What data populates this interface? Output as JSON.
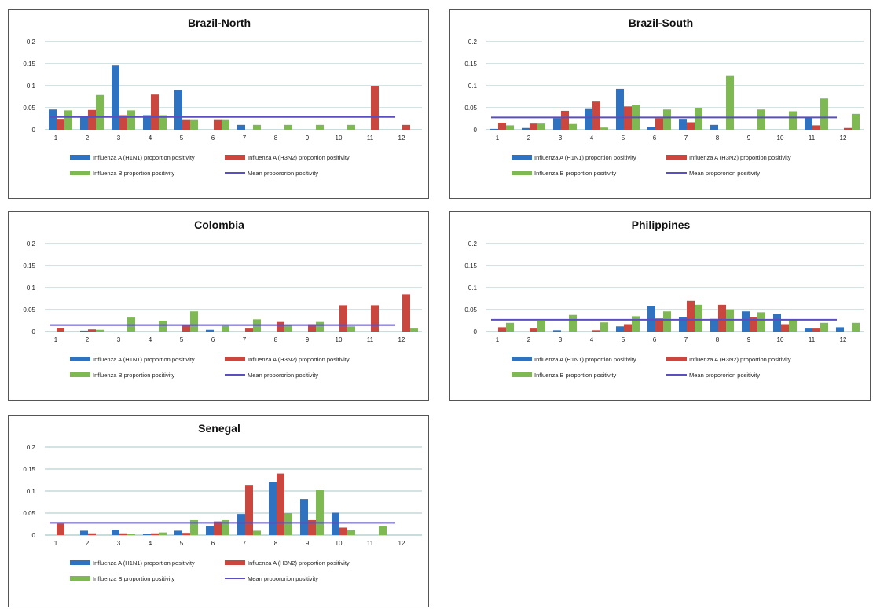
{
  "header_label": "",
  "colors": {
    "h1n1": "#2f72c0",
    "h3n2": "#c9473f",
    "b": "#7fb954",
    "mean": "#5a4fc0",
    "grid": "#a9c6c6"
  },
  "legend": {
    "h1n1": "Influenza A (H1N1) proportion positivity",
    "h3n2": "Influenza A (H3N2) proportion positivity",
    "b": "Influenza B proportion positivity",
    "mean": "Mean propororion positivity"
  },
  "chart_data": [
    {
      "type": "bar",
      "title": "Brazil-North",
      "categories": [
        "1",
        "2",
        "3",
        "4",
        "5",
        "6",
        "7",
        "8",
        "9",
        "10",
        "11",
        "12"
      ],
      "y_ticks": [
        "0",
        "0.05",
        "0.1",
        "0.15",
        "0.2"
      ],
      "ylim": [
        0,
        0.2
      ],
      "series": [
        {
          "name": "Influenza A (H1N1) proportion positivity",
          "values": [
            0.046,
            0.032,
            0.146,
            0.033,
            0.09,
            0,
            0.011,
            0,
            0,
            0,
            0,
            0
          ]
        },
        {
          "name": "Influenza A (H3N2) proportion positivity",
          "values": [
            0.023,
            0.045,
            0.033,
            0.08,
            0.022,
            0.022,
            0,
            0,
            0,
            0,
            0.1,
            0.011
          ]
        },
        {
          "name": "Influenza B proportion positivity",
          "values": [
            0.044,
            0.079,
            0.044,
            0.033,
            0.022,
            0.022,
            0.011,
            0.011,
            0.011,
            0.011,
            0,
            0
          ]
        }
      ],
      "mean": 0.029
    },
    {
      "type": "bar",
      "title": "Brazil-South",
      "categories": [
        "1",
        "2",
        "3",
        "4",
        "5",
        "6",
        "7",
        "8",
        "9",
        "10",
        "11",
        "12"
      ],
      "y_ticks": [
        "0",
        "0.05",
        "0.1",
        "0.15",
        "0.2"
      ],
      "ylim": [
        0,
        0.2
      ],
      "series": [
        {
          "name": "Influenza A (H1N1) proportion positivity",
          "values": [
            0.002,
            0.004,
            0.026,
            0.047,
            0.093,
            0.006,
            0.023,
            0.011,
            0,
            0,
            0.027,
            0
          ]
        },
        {
          "name": "Influenza A (H3N2) proportion positivity",
          "values": [
            0.016,
            0.014,
            0.043,
            0.064,
            0.053,
            0.026,
            0.017,
            0,
            0,
            0,
            0.01,
            0.004
          ]
        },
        {
          "name": "Influenza B proportion positivity",
          "values": [
            0.01,
            0.014,
            0.013,
            0.005,
            0.057,
            0.046,
            0.049,
            0.122,
            0.046,
            0.042,
            0.071,
            0.036
          ]
        }
      ],
      "mean": 0.028
    },
    {
      "type": "bar",
      "title": "Colombia",
      "categories": [
        "1",
        "2",
        "3",
        "4",
        "5",
        "6",
        "7",
        "8",
        "9",
        "10",
        "11",
        "12"
      ],
      "y_ticks": [
        "0",
        "0.05",
        "0.1",
        "0.15",
        "0.2"
      ],
      "ylim": [
        0,
        0.2
      ],
      "series": [
        {
          "name": "Influenza A (H1N1) proportion positivity",
          "values": [
            0,
            0.002,
            0,
            0,
            0,
            0.004,
            0,
            0,
            0,
            0,
            0,
            0
          ]
        },
        {
          "name": "Influenza A (H3N2) proportion positivity",
          "values": [
            0.008,
            0.005,
            0,
            0,
            0.014,
            0,
            0.007,
            0.022,
            0.017,
            0.06,
            0.06,
            0.085
          ]
        },
        {
          "name": "Influenza B proportion positivity",
          "values": [
            0,
            0.004,
            0.032,
            0.025,
            0.046,
            0.013,
            0.028,
            0.016,
            0.022,
            0.012,
            0,
            0.007
          ]
        }
      ],
      "mean": 0.015
    },
    {
      "type": "bar",
      "title": "Philippines",
      "categories": [
        "1",
        "2",
        "3",
        "4",
        "5",
        "6",
        "7",
        "8",
        "9",
        "10",
        "11",
        "12"
      ],
      "y_ticks": [
        "0",
        "0.05",
        "0.1",
        "0.15",
        "0.2"
      ],
      "ylim": [
        0,
        0.2
      ],
      "series": [
        {
          "name": "Influenza A (H1N1) proportion positivity",
          "values": [
            0,
            0,
            0.003,
            0,
            0.012,
            0.058,
            0.033,
            0.029,
            0.046,
            0.04,
            0.007,
            0.01
          ]
        },
        {
          "name": "Influenza A (H3N2) proportion positivity",
          "values": [
            0.01,
            0.007,
            0,
            0.003,
            0.017,
            0.03,
            0.07,
            0.061,
            0.033,
            0.017,
            0.007,
            0
          ]
        },
        {
          "name": "Influenza B proportion positivity",
          "values": [
            0.02,
            0.025,
            0.038,
            0.021,
            0.035,
            0.046,
            0.061,
            0.051,
            0.044,
            0.026,
            0.02,
            0.02
          ]
        }
      ],
      "mean": 0.027
    },
    {
      "type": "bar",
      "title": "Senegal",
      "categories": [
        "1",
        "2",
        "3",
        "4",
        "5",
        "6",
        "7",
        "8",
        "9",
        "10",
        "11",
        "12"
      ],
      "y_ticks": [
        "0",
        "0.05",
        "0.1",
        "0.15",
        "0.2"
      ],
      "ylim": [
        0,
        0.2
      ],
      "series": [
        {
          "name": "Influenza A (H1N1) proportion positivity",
          "values": [
            0,
            0.01,
            0.012,
            0.003,
            0.01,
            0.02,
            0.048,
            0.12,
            0.082,
            0.051,
            0,
            0
          ]
        },
        {
          "name": "Influenza A (H3N2) proportion positivity",
          "values": [
            0.026,
            0.004,
            0.004,
            0.004,
            0.005,
            0.031,
            0.114,
            0.14,
            0.034,
            0.017,
            0,
            0
          ]
        },
        {
          "name": "Influenza B proportion positivity",
          "values": [
            0,
            0,
            0.003,
            0.006,
            0.034,
            0.034,
            0.01,
            0.05,
            0.103,
            0.011,
            0.02,
            0
          ]
        }
      ],
      "mean": 0.028
    }
  ]
}
